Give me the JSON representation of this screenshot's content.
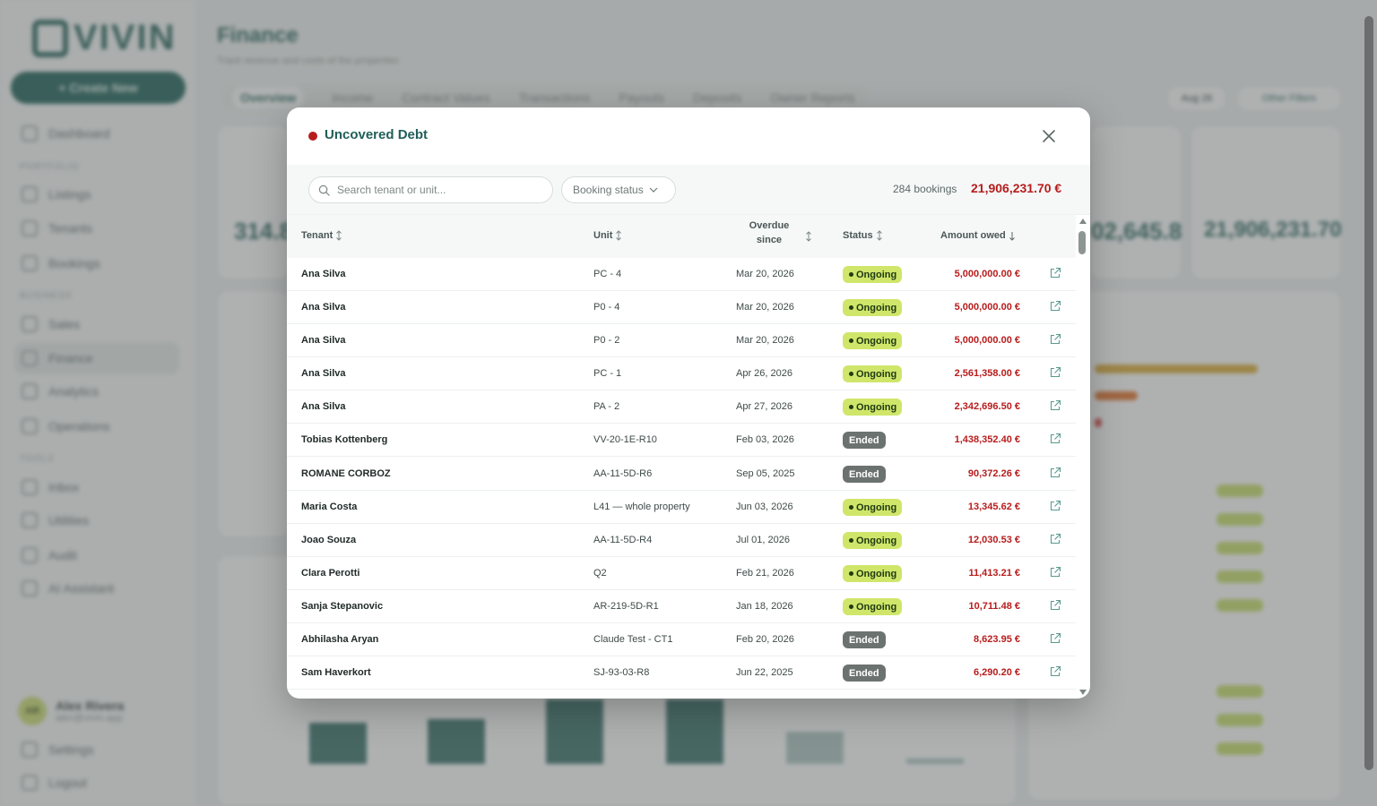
{
  "app": {
    "logo_text": "VIVIN",
    "create_button": "+ Create New",
    "nav": {
      "dashboard": "Dashboard",
      "section_portfolio": "PORTFOLIO",
      "listings": "Listings",
      "tenants": "Tenants",
      "bookings": "Bookings",
      "section_business": "BUSINESS",
      "sales": "Sales",
      "finance": "Finance",
      "analytics": "Analytics",
      "operations": "Operations",
      "section_tools": "TOOLS",
      "inbox": "Inbox",
      "utilities": "Utilities",
      "audit": "Audit",
      "ai_assistant": "AI Assistant",
      "settings": "Settings",
      "logout": "Logout"
    },
    "user": {
      "initials": "AR",
      "name": "Alex Rivera",
      "email": "alex@vivin.app"
    },
    "page_title": "Finance",
    "page_subtitle": "Track revenue and costs of the properties",
    "tabs": [
      "Overview",
      "Income",
      "Contract Values",
      "Transactions",
      "Payouts",
      "Deposits",
      "Owner Reports"
    ],
    "filters": {
      "month": "Aug 26",
      "other": "Other Filters"
    },
    "bg_values": {
      "income": "314.8",
      "mid_card": "02,645.8",
      "debt_card": "21,906,231.70"
    }
  },
  "modal": {
    "title": "Uncovered Debt",
    "search_placeholder": "Search tenant or unit...",
    "status_filter": "Booking status",
    "bookings_count": "284 bookings",
    "total_amount": "21,906,231.70 €",
    "columns": {
      "tenant": "Tenant",
      "unit": "Unit",
      "overdue_line1": "Overdue",
      "overdue_line2": "since",
      "status": "Status",
      "amount": "Amount owed"
    },
    "rows": [
      {
        "tenant": "Ana Silva",
        "unit": "PC - 4",
        "since": "Mar 20, 2026",
        "status": "Ongoing",
        "amount": "5,000,000.00 €"
      },
      {
        "tenant": "Ana Silva",
        "unit": "P0 - 4",
        "since": "Mar 20, 2026",
        "status": "Ongoing",
        "amount": "5,000,000.00 €"
      },
      {
        "tenant": "Ana Silva",
        "unit": "P0 - 2",
        "since": "Mar 20, 2026",
        "status": "Ongoing",
        "amount": "5,000,000.00 €"
      },
      {
        "tenant": "Ana Silva",
        "unit": "PC - 1",
        "since": "Apr 26, 2026",
        "status": "Ongoing",
        "amount": "2,561,358.00 €"
      },
      {
        "tenant": "Ana Silva",
        "unit": "PA - 2",
        "since": "Apr 27, 2026",
        "status": "Ongoing",
        "amount": "2,342,696.50 €"
      },
      {
        "tenant": "Tobias Kottenberg",
        "unit": "VV-20-1E-R10",
        "since": "Feb 03, 2026",
        "status": "Ended",
        "amount": "1,438,352.40 €"
      },
      {
        "tenant": "ROMANE CORBOZ",
        "unit": "AA-11-5D-R6",
        "since": "Sep 05, 2025",
        "status": "Ended",
        "amount": "90,372.26 €"
      },
      {
        "tenant": "Maria Costa",
        "unit": "L41 — whole property",
        "since": "Jun 03, 2026",
        "status": "Ongoing",
        "amount": "13,345.62 €"
      },
      {
        "tenant": "Joao Souza",
        "unit": "AA-11-5D-R4",
        "since": "Jul 01, 2026",
        "status": "Ongoing",
        "amount": "12,030.53 €"
      },
      {
        "tenant": "Clara Perotti",
        "unit": "Q2",
        "since": "Feb 21, 2026",
        "status": "Ongoing",
        "amount": "11,413.21 €"
      },
      {
        "tenant": "Sanja Stepanovic",
        "unit": "AR-219-5D-R1",
        "since": "Jan 18, 2026",
        "status": "Ongoing",
        "amount": "10,711.48 €"
      },
      {
        "tenant": "Abhilasha Aryan",
        "unit": "Claude Test - CT1",
        "since": "Feb 20, 2026",
        "status": "Ended",
        "amount": "8,623.95 €"
      },
      {
        "tenant": "Sam Haverkort",
        "unit": "SJ-93-03-R8",
        "since": "Jun 22, 2025",
        "status": "Ended",
        "amount": "6,290.20 €"
      }
    ]
  },
  "colors": {
    "brand": "#1f5f57",
    "debt_red": "#b71c1c",
    "ongoing": "#cfe66a",
    "ended": "#6c7270"
  }
}
